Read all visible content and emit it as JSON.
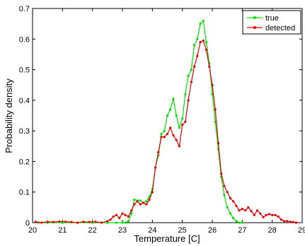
{
  "chart_data": {
    "type": "line",
    "title": "",
    "xlabel": "Temperature [C]",
    "ylabel": "Probability density",
    "xlim": [
      20,
      29
    ],
    "ylim": [
      0,
      0.7
    ],
    "x_ticks": [
      "20",
      "21",
      "22",
      "23",
      "24",
      "25",
      "26",
      "27",
      "28",
      "29"
    ],
    "y_ticks": [
      "0",
      "0.1",
      "0.2",
      "0.3",
      "0.4",
      "0.5",
      "0.6",
      "0.7"
    ],
    "grid": false,
    "legend_position": "top-right",
    "series": [
      {
        "name": "true",
        "color": "#00e000",
        "marker": "dot",
        "points": [
          [
            20.2,
            0.0
          ],
          [
            20.5,
            0.0
          ],
          [
            21.0,
            0.0
          ],
          [
            21.5,
            0.0
          ],
          [
            22.0,
            0.0
          ],
          [
            22.5,
            0.0
          ],
          [
            22.8,
            0.0
          ],
          [
            23.0,
            0.0
          ],
          [
            23.1,
            0.0
          ],
          [
            23.2,
            0.005
          ],
          [
            23.3,
            0.03
          ],
          [
            23.4,
            0.075
          ],
          [
            23.5,
            0.072
          ],
          [
            23.6,
            0.072
          ],
          [
            23.7,
            0.065
          ],
          [
            23.8,
            0.07
          ],
          [
            23.9,
            0.085
          ],
          [
            24.0,
            0.11
          ],
          [
            24.1,
            0.18
          ],
          [
            24.2,
            0.22
          ],
          [
            24.3,
            0.29
          ],
          [
            24.4,
            0.3
          ],
          [
            24.5,
            0.35
          ],
          [
            24.6,
            0.37
          ],
          [
            24.7,
            0.405
          ],
          [
            24.8,
            0.35
          ],
          [
            24.9,
            0.31
          ],
          [
            25.0,
            0.34
          ],
          [
            25.1,
            0.42
          ],
          [
            25.2,
            0.48
          ],
          [
            25.3,
            0.5
          ],
          [
            25.4,
            0.58
          ],
          [
            25.5,
            0.6
          ],
          [
            25.6,
            0.65
          ],
          [
            25.7,
            0.66
          ],
          [
            25.8,
            0.59
          ],
          [
            25.9,
            0.52
          ],
          [
            26.0,
            0.42
          ],
          [
            26.1,
            0.33
          ],
          [
            26.2,
            0.24
          ],
          [
            26.3,
            0.15
          ],
          [
            26.4,
            0.09
          ],
          [
            26.5,
            0.05
          ],
          [
            26.6,
            0.03
          ],
          [
            26.7,
            0.015
          ],
          [
            26.8,
            0.005
          ],
          [
            26.9,
            0.0
          ],
          [
            27.0,
            0.0
          ]
        ]
      },
      {
        "name": "detected",
        "color": "#e00000",
        "marker": "dot",
        "points": [
          [
            20.1,
            0.003
          ],
          [
            20.3,
            0.0
          ],
          [
            20.5,
            0.003
          ],
          [
            20.7,
            0.002
          ],
          [
            20.9,
            0.004
          ],
          [
            21.1,
            0.003
          ],
          [
            21.3,
            0.002
          ],
          [
            21.5,
            0.0
          ],
          [
            21.7,
            0.003
          ],
          [
            21.9,
            0.002
          ],
          [
            22.1,
            0.003
          ],
          [
            22.3,
            0.0
          ],
          [
            22.5,
            0.005
          ],
          [
            22.6,
            0.01
          ],
          [
            22.7,
            0.02
          ],
          [
            22.8,
            0.025
          ],
          [
            22.9,
            0.015
          ],
          [
            23.0,
            0.03
          ],
          [
            23.1,
            0.025
          ],
          [
            23.2,
            0.02
          ],
          [
            23.3,
            0.04
          ],
          [
            23.4,
            0.06
          ],
          [
            23.5,
            0.07
          ],
          [
            23.6,
            0.06
          ],
          [
            23.7,
            0.065
          ],
          [
            23.8,
            0.06
          ],
          [
            23.9,
            0.075
          ],
          [
            24.0,
            0.1
          ],
          [
            24.1,
            0.18
          ],
          [
            24.2,
            0.23
          ],
          [
            24.3,
            0.28
          ],
          [
            24.4,
            0.28
          ],
          [
            24.5,
            0.29
          ],
          [
            24.6,
            0.31
          ],
          [
            24.7,
            0.285
          ],
          [
            24.8,
            0.27
          ],
          [
            24.9,
            0.25
          ],
          [
            25.0,
            0.32
          ],
          [
            25.1,
            0.33
          ],
          [
            25.2,
            0.4
          ],
          [
            25.3,
            0.46
          ],
          [
            25.4,
            0.51
          ],
          [
            25.5,
            0.545
          ],
          [
            25.6,
            0.59
          ],
          [
            25.7,
            0.595
          ],
          [
            25.8,
            0.565
          ],
          [
            25.9,
            0.51
          ],
          [
            26.0,
            0.45
          ],
          [
            26.1,
            0.37
          ],
          [
            26.2,
            0.26
          ],
          [
            26.3,
            0.16
          ],
          [
            26.4,
            0.12
          ],
          [
            26.5,
            0.1
          ],
          [
            26.6,
            0.08
          ],
          [
            26.7,
            0.07
          ],
          [
            26.8,
            0.055
          ],
          [
            26.9,
            0.04
          ],
          [
            27.0,
            0.045
          ],
          [
            27.1,
            0.04
          ],
          [
            27.2,
            0.05
          ],
          [
            27.3,
            0.038
          ],
          [
            27.4,
            0.025
          ],
          [
            27.5,
            0.04
          ],
          [
            27.6,
            0.03
          ],
          [
            27.7,
            0.018
          ],
          [
            27.8,
            0.025
          ],
          [
            27.9,
            0.028
          ],
          [
            28.0,
            0.025
          ],
          [
            28.1,
            0.025
          ],
          [
            28.2,
            0.02
          ],
          [
            28.3,
            0.01
          ],
          [
            28.4,
            0.005
          ],
          [
            28.5,
            0.005
          ],
          [
            28.6,
            0.003
          ],
          [
            28.7,
            0.002
          ],
          [
            28.8,
            0.0
          ]
        ]
      }
    ]
  }
}
